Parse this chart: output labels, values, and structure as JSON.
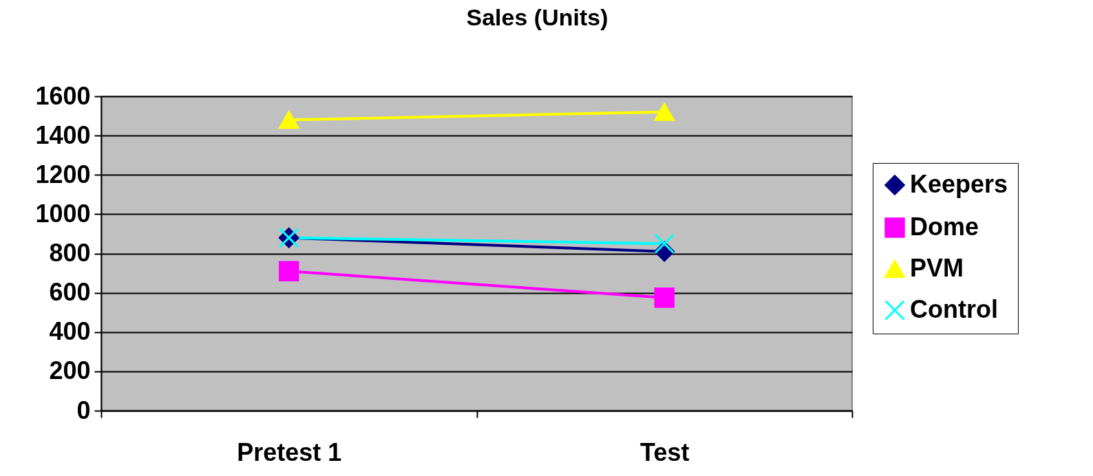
{
  "chart_data": {
    "type": "line",
    "title": "Sales (Units)",
    "categories": [
      "Pretest 1",
      "Test"
    ],
    "series": [
      {
        "name": "Keepers",
        "color": "#000080",
        "marker": "diamond",
        "values": [
          880,
          810
        ]
      },
      {
        "name": "Dome",
        "color": "#ff00ff",
        "marker": "square",
        "values": [
          710,
          575
        ]
      },
      {
        "name": "PVM",
        "color": "#ffff00",
        "marker": "triangle",
        "values": [
          1480,
          1520
        ]
      },
      {
        "name": "Control",
        "color": "#00ffff",
        "marker": "cross",
        "values": [
          880,
          850
        ]
      }
    ],
    "ylim": [
      0,
      1600
    ],
    "yticks": [
      0,
      200,
      400,
      600,
      800,
      1000,
      1200,
      1400,
      1600
    ],
    "grid": "y",
    "legend": "right"
  }
}
